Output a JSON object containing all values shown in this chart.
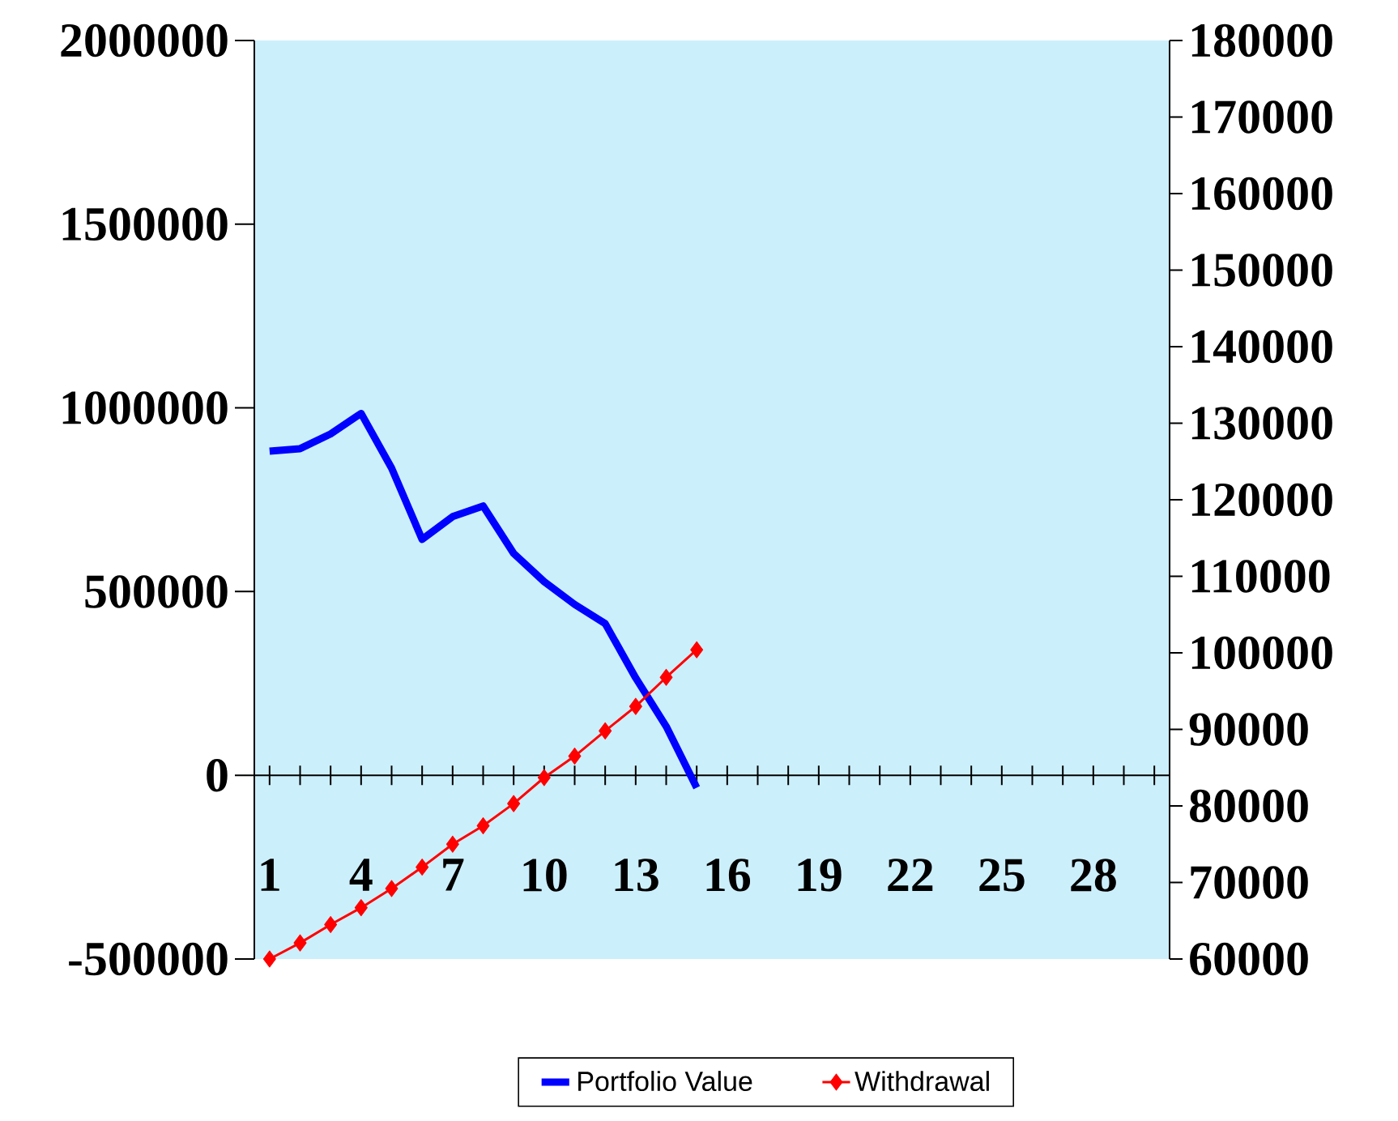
{
  "chart_data": {
    "type": "line",
    "categories": [
      "1",
      null,
      null,
      "4",
      null,
      null,
      "7",
      null,
      null,
      "10",
      null,
      null,
      "13",
      null,
      null,
      "16",
      null,
      null,
      "19",
      null,
      null,
      "22",
      null,
      null,
      "25",
      null,
      null,
      "28",
      null,
      null
    ],
    "series": [
      {
        "name": "Portfolio Value",
        "color": "#0000ff",
        "marker": "none",
        "values": [
          882000,
          889000,
          929000,
          985000,
          836000,
          642000,
          704000,
          733000,
          604000,
          527000,
          465000,
          413000,
          265000,
          133000,
          -34000,
          null,
          null,
          null,
          null,
          null,
          null,
          null,
          null,
          null,
          null,
          null,
          null,
          null,
          null,
          null
        ]
      },
      {
        "name": "Withdrawal",
        "color": "#ff0000",
        "marker": "diamond",
        "axis": "y2",
        "values": [
          60000,
          62100,
          64500,
          66700,
          69200,
          72000,
          75000,
          77400,
          80300,
          83700,
          86500,
          89800,
          93000,
          96800,
          100400,
          null,
          null,
          null,
          null,
          null,
          null,
          null,
          null,
          null,
          null,
          null,
          null,
          null,
          null,
          null
        ]
      }
    ],
    "ylim": [
      -500000,
      2000000
    ],
    "yticks": [
      -500000,
      0,
      500000,
      1000000,
      1500000,
      2000000
    ],
    "y2lim": [
      60000,
      180000
    ],
    "y2ticks": [
      60000,
      70000,
      80000,
      90000,
      100000,
      110000,
      120000,
      130000,
      140000,
      150000,
      160000,
      170000,
      180000
    ],
    "legend": "bottom"
  }
}
